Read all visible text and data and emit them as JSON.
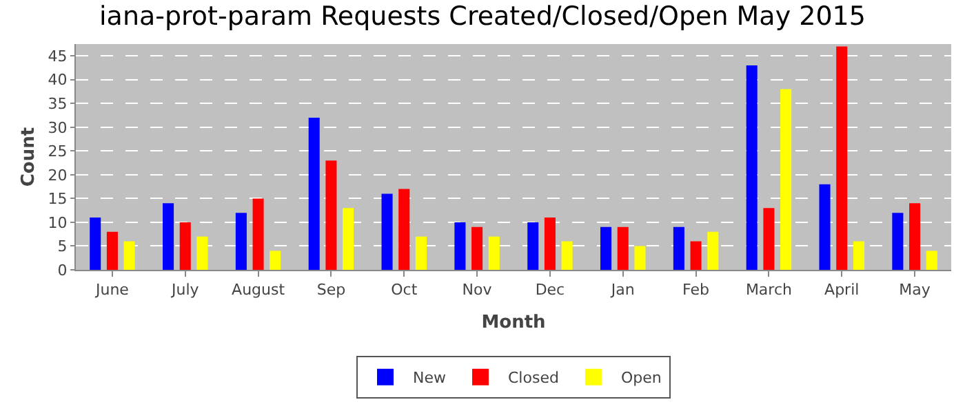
{
  "chart_data": {
    "type": "bar",
    "title": "iana-prot-param Requests Created/Closed/Open May 2015",
    "xlabel": "Month",
    "ylabel": "Count",
    "categories": [
      "June",
      "July",
      "August",
      "Sep",
      "Oct",
      "Nov",
      "Dec",
      "Jan",
      "Feb",
      "March",
      "April",
      "May"
    ],
    "series": [
      {
        "name": "New",
        "color": "#0000ff",
        "values": [
          11,
          14,
          12,
          32,
          16,
          10,
          10,
          9,
          9,
          43,
          18,
          12
        ]
      },
      {
        "name": "Closed",
        "color": "#ff0000",
        "values": [
          8,
          10,
          15,
          23,
          17,
          9,
          11,
          9,
          6,
          13,
          47,
          14
        ]
      },
      {
        "name": "Open",
        "color": "#ffff00",
        "values": [
          6,
          7,
          4,
          13,
          7,
          7,
          6,
          5,
          8,
          38,
          6,
          4
        ]
      }
    ],
    "ylim": [
      0,
      47.5
    ],
    "yticks": [
      0,
      5,
      10,
      15,
      20,
      25,
      30,
      35,
      40,
      45
    ],
    "grid": "y",
    "legend": "bottom"
  }
}
